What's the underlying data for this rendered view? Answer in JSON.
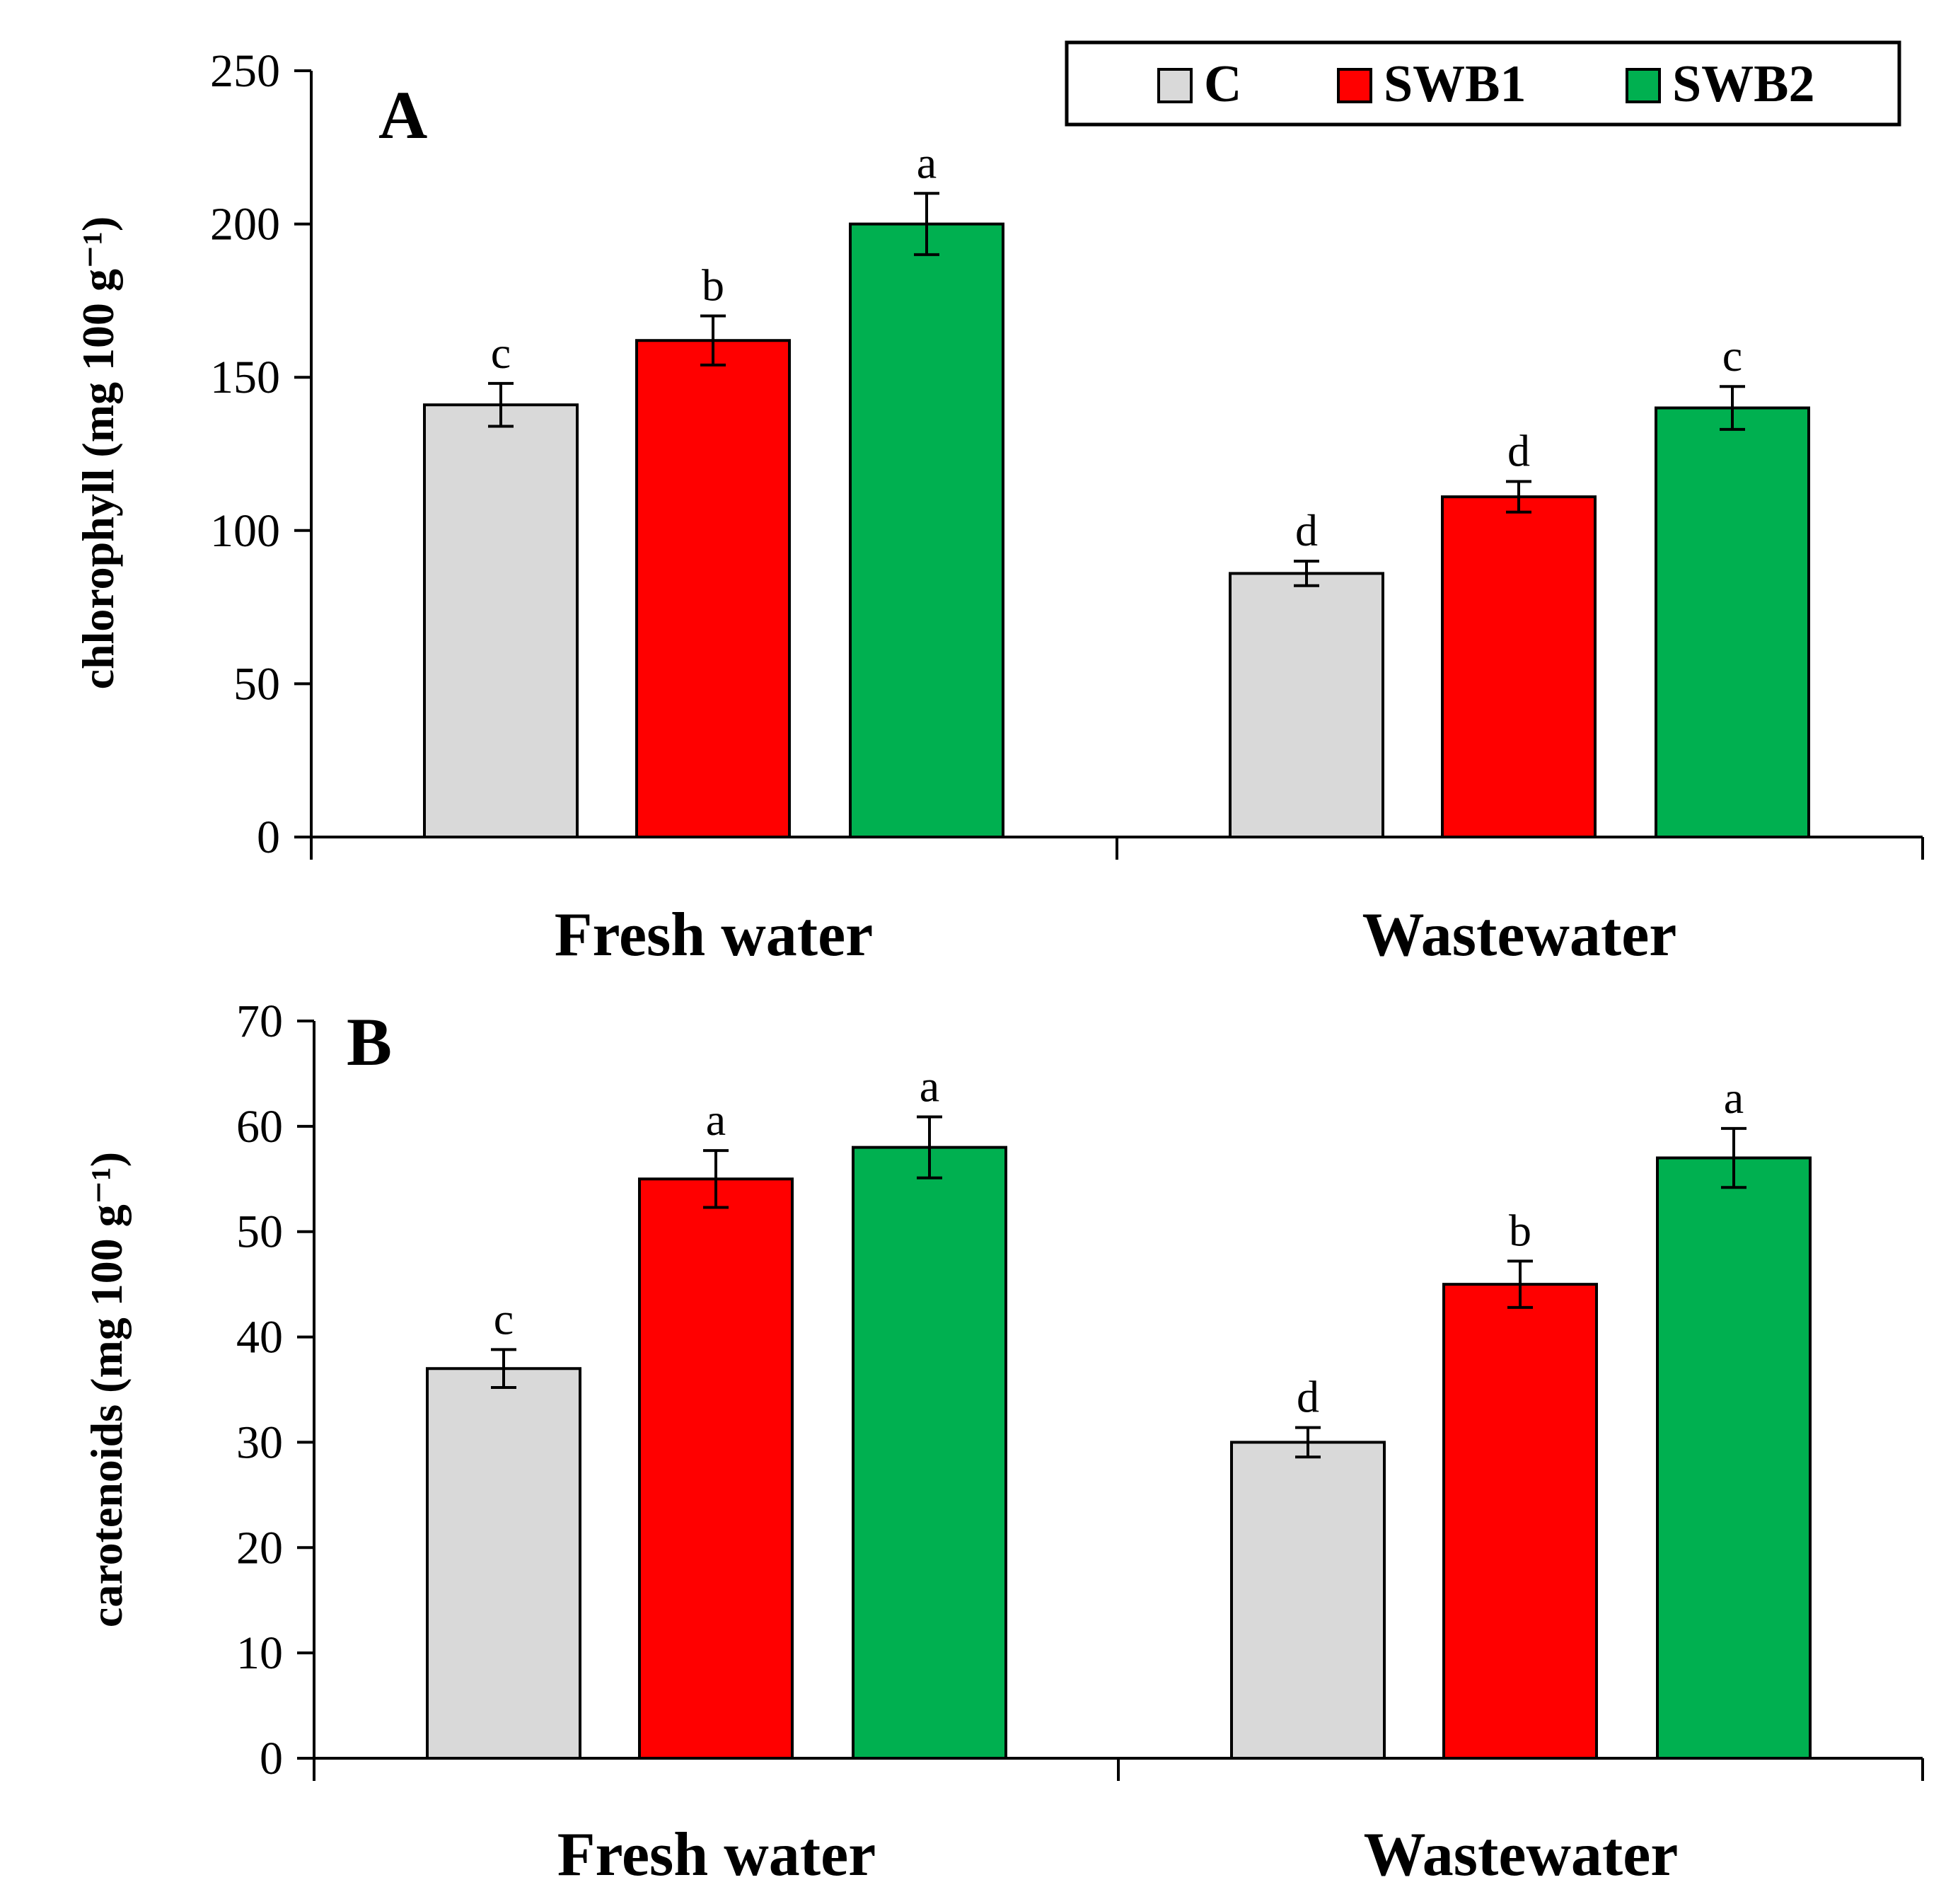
{
  "colors": {
    "C": "#d9d9d9",
    "SWB1": "#ff0000",
    "SWB2": "#00b050"
  },
  "legend": {
    "position": "top-right",
    "entries": [
      {
        "key": "C",
        "label": "C"
      },
      {
        "key": "SWB1",
        "label": "SWB1"
      },
      {
        "key": "SWB2",
        "label": "SWB2"
      }
    ]
  },
  "chart_data": [
    {
      "type": "bar",
      "panel": "A",
      "ylabel": "chlorophyll (mg 100 g⁻¹)",
      "ylim": [
        0,
        250
      ],
      "yticks": [
        0,
        50,
        100,
        150,
        200,
        250
      ],
      "categories": [
        "Fresh water",
        "Wastewater"
      ],
      "series": [
        {
          "name": "C",
          "values": [
            141,
            86
          ],
          "errors": [
            7,
            4
          ],
          "letters": [
            "c",
            "d"
          ]
        },
        {
          "name": "SWB1",
          "values": [
            162,
            111
          ],
          "errors": [
            8,
            5
          ],
          "letters": [
            "b",
            "d"
          ]
        },
        {
          "name": "SWB2",
          "values": [
            200,
            140
          ],
          "errors": [
            10,
            7
          ],
          "letters": [
            "a",
            "c"
          ]
        }
      ]
    },
    {
      "type": "bar",
      "panel": "B",
      "ylabel": "carotenoids (mg 100 g⁻¹)",
      "ylim": [
        0,
        70
      ],
      "yticks": [
        0,
        10,
        20,
        30,
        40,
        50,
        60,
        70
      ],
      "categories": [
        "Fresh water",
        "Wastewater"
      ],
      "series": [
        {
          "name": "C",
          "values": [
            37,
            30
          ],
          "errors": [
            1.8,
            1.4
          ],
          "letters": [
            "c",
            "d"
          ]
        },
        {
          "name": "SWB1",
          "values": [
            55,
            45
          ],
          "errors": [
            2.7,
            2.2
          ],
          "letters": [
            "a",
            "b"
          ]
        },
        {
          "name": "SWB2",
          "values": [
            58,
            57
          ],
          "errors": [
            2.9,
            2.8
          ],
          "letters": [
            "a",
            "a"
          ]
        }
      ]
    }
  ]
}
